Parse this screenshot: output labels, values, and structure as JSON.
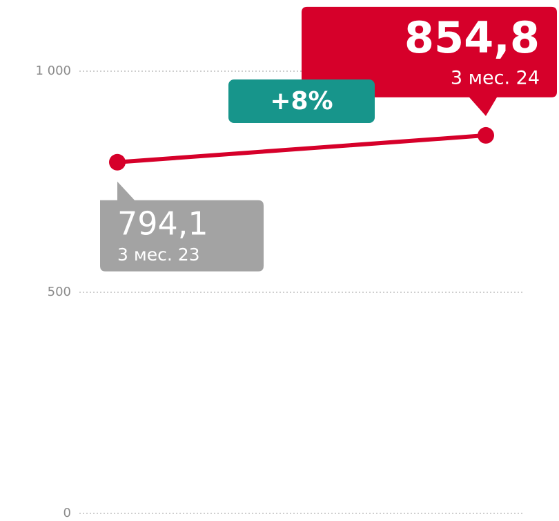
{
  "chart_data": {
    "type": "line",
    "categories": [
      "3 мес. 23",
      "3 мес. 24"
    ],
    "series": [
      {
        "name": null,
        "color": "#d6002a",
        "values": [
          794.1,
          854.8
        ],
        "value_labels": [
          "794,1",
          "854,8"
        ]
      }
    ],
    "callout_colors": [
      "#a3a3a3",
      "#d6002a"
    ],
    "annotation": "+8%",
    "annotation_color": "#17958b",
    "ylim": [
      0,
      1000
    ],
    "yticks": [
      0,
      500,
      {
        "value": 1000,
        "label": "1 000"
      }
    ],
    "grid": true
  }
}
